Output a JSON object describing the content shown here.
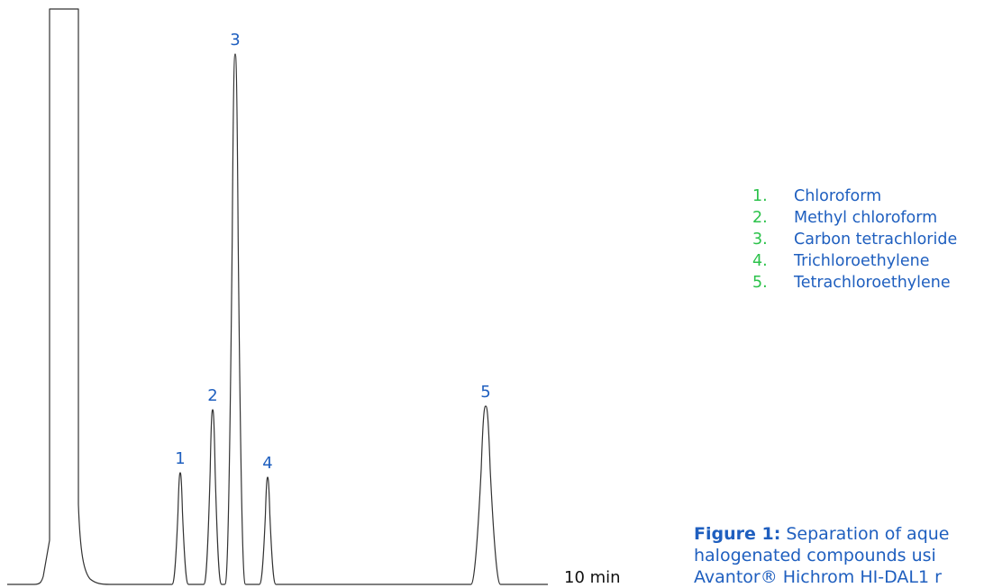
{
  "chart_data": {
    "type": "line",
    "title": "",
    "xlabel": "",
    "ylabel": "",
    "x_end_label": "10 min",
    "peaks": [
      {
        "label": "1",
        "name": "Chloroform"
      },
      {
        "label": "2",
        "name": "Methyl chloroform"
      },
      {
        "label": "3",
        "name": "Carbon tetrachloride"
      },
      {
        "label": "4",
        "name": "Trichloroethylene"
      },
      {
        "label": "5",
        "name": "Tetrachloroethylene"
      }
    ],
    "line_color": "#333333",
    "label_color": "#1f5fbf"
  },
  "legend": {
    "items": [
      {
        "num": "1.",
        "name": "Chloroform"
      },
      {
        "num": "2.",
        "name": "Methyl chloroform"
      },
      {
        "num": "3.",
        "name": "Carbon tetrachloride"
      },
      {
        "num": "4.",
        "name": "Trichloroethylene"
      },
      {
        "num": "5.",
        "name": "Tetrachloroethylene"
      }
    ],
    "number_color": "#2bc24a",
    "name_color": "#1f5fbf"
  },
  "caption": {
    "label": "Figure 1:",
    "line1": "Separation of aque",
    "line2": "halogenated compounds usi",
    "line3": "Avantor® Hichrom HI-DAL1 r"
  }
}
